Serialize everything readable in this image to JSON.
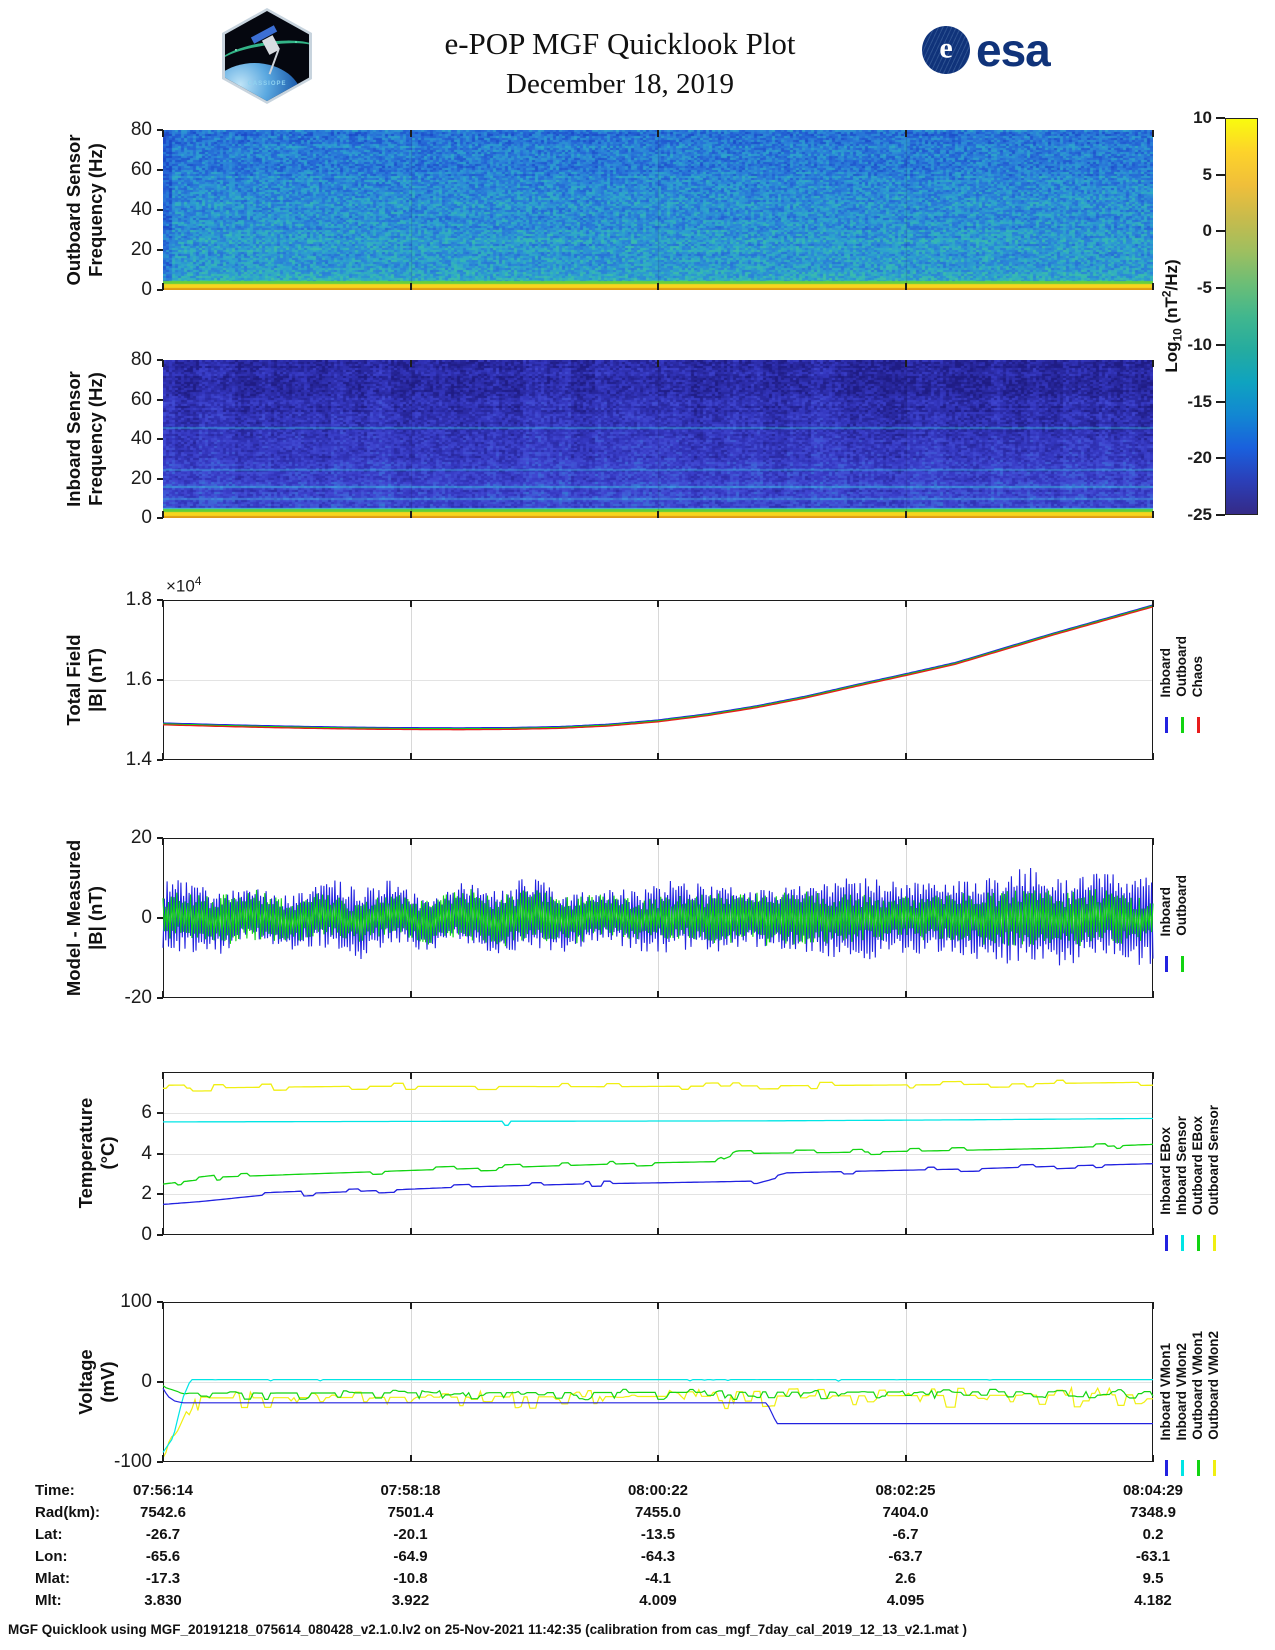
{
  "header": {
    "title": "e-POP MGF Quicklook Plot",
    "date": "December 18, 2019",
    "esa_text": "esa",
    "esa_globe_letter": "e",
    "mission_patch_text": "CASSIOPE"
  },
  "colorbar": {
    "label_parts": {
      "base": "Log",
      "sub": "10",
      "mid": " (nT",
      "sup": "2",
      "end": "/Hz)"
    },
    "tick_labels": [
      "10",
      "5",
      "0",
      "-5",
      "-10",
      "-15",
      "-20",
      "-25"
    ],
    "tick_values": [
      10,
      5,
      0,
      -5,
      -10,
      -15,
      -20,
      -25
    ],
    "gradient_top_to_bottom": [
      "#f9fb0e",
      "#fdd32a",
      "#f0bf3a",
      "#c8bb4c",
      "#9fbf5f",
      "#6cbe76",
      "#41b78e",
      "#25ac9f",
      "#0fa3c0",
      "#1287d2",
      "#1a60dd",
      "#2b3fb8",
      "#352a87"
    ]
  },
  "chart_data": [
    {
      "id": "outboard_spectrogram",
      "type": "heatmap",
      "ylabel_lines": [
        "Outboard Sensor",
        "Frequency (Hz)"
      ],
      "ylim": [
        0,
        80
      ],
      "ytick_values": [
        0,
        20,
        40,
        60,
        80
      ],
      "ytick_labels": [
        "0",
        "20",
        "40",
        "60",
        "80"
      ],
      "x_start": "07:56:14",
      "x_end": "08:04:29",
      "value_scale": "Log10 (nT^2/Hz)",
      "base_level_log": {
        "top": -13.5,
        "bottom": -12.0
      },
      "bottom_band": {
        "freq_hz": 0,
        "description": "bright yellow/orange band at 0 Hz"
      },
      "palette": [
        "#1b49c8",
        "#2566d6",
        "#2b84d8",
        "#2da4cd",
        "#36bab2",
        "#49c69b"
      ],
      "grad": {
        "top": 0.3,
        "bottom": 0.62,
        "noise": 0.5
      },
      "bottom_rows": [
        {
          "h": 3,
          "color": "#66cf3d"
        },
        {
          "h": 4,
          "color": "#f7d51d"
        },
        {
          "h": 2,
          "color": "#de9a15"
        }
      ]
    },
    {
      "id": "inboard_spectrogram",
      "type": "heatmap",
      "ylabel_lines": [
        "Inboard Sensor",
        "Frequency (Hz)"
      ],
      "ylim": [
        0,
        80
      ],
      "ytick_values": [
        0,
        20,
        40,
        60,
        80
      ],
      "ytick_labels": [
        "0",
        "20",
        "40",
        "60",
        "80"
      ],
      "x_start": "07:56:14",
      "x_end": "08:04:29",
      "value_scale": "Log10 (nT^2/Hz)",
      "base_level_log": {
        "top": -18.0,
        "bottom": -14.0
      },
      "interference_lines_hz": [
        {
          "hz": 46,
          "alpha": 0.4
        },
        {
          "hz": 25,
          "alpha": 0.35
        },
        {
          "hz": 16,
          "alpha": 0.5
        },
        {
          "hz": 10,
          "alpha": 0.35
        },
        {
          "hz": 5,
          "alpha": 0.8
        }
      ],
      "interference_color": "#3fd4e8",
      "palette": [
        "#1f1c84",
        "#2a2aa4",
        "#3437c0",
        "#4048d2",
        "#3f63d8",
        "#2f86d2",
        "#31b2c3"
      ],
      "grad": {
        "top": 0.16,
        "bottom": 0.52,
        "noise": 0.38
      },
      "bottom_rows": [
        {
          "h": 3,
          "color": "#5ecf3a"
        },
        {
          "h": 4,
          "color": "#f7d51d"
        },
        {
          "h": 2,
          "color": "#de9a15"
        }
      ]
    },
    {
      "id": "total_field",
      "type": "line",
      "ylabel_lines": [
        "Total Field",
        "|B| (nT)"
      ],
      "ylim": [
        14000,
        18000
      ],
      "ytick_values": [
        14000,
        16000,
        18000
      ],
      "ytick_labels": [
        "1.4",
        "1.6",
        "1.8"
      ],
      "exponent_parts": {
        "base": "×10",
        "sup": "4"
      },
      "series": [
        {
          "name": "Inboard",
          "color": "#2222e0"
        },
        {
          "name": "Outboard",
          "color": "#12d412"
        },
        {
          "name": "Chaos",
          "color": "#e81c1c"
        }
      ],
      "shared_curve_anchors": [
        [
          0,
          14880
        ],
        [
          0.05,
          14845
        ],
        [
          0.1,
          14815
        ],
        [
          0.15,
          14790
        ],
        [
          0.2,
          14772
        ],
        [
          0.25,
          14762
        ],
        [
          0.3,
          14758
        ],
        [
          0.35,
          14765
        ],
        [
          0.4,
          14790
        ],
        [
          0.45,
          14850
        ],
        [
          0.5,
          14955
        ],
        [
          0.55,
          15110
        ],
        [
          0.6,
          15310
        ],
        [
          0.65,
          15555
        ],
        [
          0.7,
          15840
        ],
        [
          0.75,
          16110
        ],
        [
          0.8,
          16390
        ],
        [
          0.85,
          16760
        ],
        [
          0.9,
          17130
        ],
        [
          0.95,
          17480
        ],
        [
          1,
          17830
        ]
      ]
    },
    {
      "id": "model_minus_measured",
      "type": "line",
      "ylabel_lines": [
        "Model - Measured",
        "|B| (nT)"
      ],
      "ylim": [
        -20,
        20
      ],
      "ytick_values": [
        -20,
        0,
        20
      ],
      "ytick_labels": [
        "-20",
        "0",
        "20"
      ],
      "series": [
        {
          "name": "Inboard",
          "color": "#2222e0",
          "amplitude_nT": [
            8,
            13
          ]
        },
        {
          "name": "Outboard",
          "color": "#12d412",
          "amplitude_nT": [
            5.5,
            7
          ]
        }
      ],
      "character": "dense spin-tone oscillation about 0, blue envelope grows toward end of pass"
    },
    {
      "id": "temperature",
      "type": "line",
      "ylabel_lines": [
        "Temperature",
        "(°C)"
      ],
      "ylim": [
        0,
        8
      ],
      "ytick_values": [
        0,
        2,
        4,
        6
      ],
      "ytick_labels": [
        "0",
        "2",
        "4",
        "6"
      ],
      "series": [
        {
          "name": "Inboard EBox",
          "color": "#2222e0",
          "anchors": [
            [
              0,
              1.5
            ],
            [
              0.04,
              1.65
            ],
            [
              0.1,
              1.95
            ],
            [
              0.2,
              2.15
            ],
            [
              0.3,
              2.35
            ],
            [
              0.42,
              2.5
            ],
            [
              0.55,
              2.6
            ],
            [
              0.6,
              2.65
            ],
            [
              0.63,
              3.05
            ],
            [
              0.72,
              3.15
            ],
            [
              0.82,
              3.25
            ],
            [
              0.92,
              3.4
            ],
            [
              1,
              3.5
            ]
          ],
          "noise": {
            "p": 0.28,
            "amp": 0.12
          }
        },
        {
          "name": "Inboard Sensor",
          "color": "#00e5e5",
          "anchors": [
            [
              0,
              5.55
            ],
            [
              0.3,
              5.58
            ],
            [
              0.6,
              5.6
            ],
            [
              0.8,
              5.65
            ],
            [
              1,
              5.72
            ]
          ],
          "noise": {
            "p": 0.06,
            "amp": 0.2
          }
        },
        {
          "name": "Outboard EBox",
          "color": "#12d412",
          "anchors": [
            [
              0,
              2.5
            ],
            [
              0.06,
              2.85
            ],
            [
              0.15,
              3.0
            ],
            [
              0.27,
              3.2
            ],
            [
              0.4,
              3.4
            ],
            [
              0.5,
              3.55
            ],
            [
              0.56,
              3.6
            ],
            [
              0.58,
              4.0
            ],
            [
              0.68,
              4.05
            ],
            [
              0.8,
              4.15
            ],
            [
              0.9,
              4.25
            ],
            [
              1,
              4.45
            ]
          ],
          "noise": {
            "p": 0.3,
            "amp": 0.13
          }
        },
        {
          "name": "Outboard Sensor",
          "color": "#f0ef12",
          "anchors": [
            [
              0,
              7.2
            ],
            [
              0.2,
              7.3
            ],
            [
              0.45,
              7.28
            ],
            [
              0.6,
              7.32
            ],
            [
              0.8,
              7.38
            ],
            [
              1,
              7.5
            ]
          ],
          "noise": {
            "p": 0.3,
            "amp": 0.15
          }
        }
      ]
    },
    {
      "id": "voltage",
      "type": "line",
      "ylabel_lines": [
        "Voltage",
        "(mV)"
      ],
      "ylim": [
        -100,
        100
      ],
      "ytick_values": [
        -100,
        0,
        100
      ],
      "ytick_labels": [
        "-100",
        "0",
        "100"
      ],
      "series": [
        {
          "name": "Inboard VMon1",
          "color": "#2222e0",
          "anchors": [
            [
              0,
              -8
            ],
            [
              0.005,
              -18
            ],
            [
              0.012,
              -24
            ],
            [
              0.02,
              -26
            ],
            [
              0.61,
              -26
            ],
            [
              0.62,
              -52
            ],
            [
              1,
              -52
            ]
          ],
          "noise": {
            "pulse_p": 0.012,
            "pulse_amp": 5,
            "after_x": 0.63
          }
        },
        {
          "name": "Inboard VMon2",
          "color": "#00e5e5",
          "anchors": [
            [
              0,
              -88
            ],
            [
              0.01,
              -70
            ],
            [
              0.02,
              -20
            ],
            [
              0.028,
              3
            ],
            [
              1,
              3
            ]
          ],
          "noise": {
            "p": 0.03,
            "amp": -2
          }
        },
        {
          "name": "Outboard VMon1",
          "color": "#12d412",
          "anchors": [
            [
              0,
              -6
            ],
            [
              0.02,
              -14
            ],
            [
              1,
              -12
            ]
          ],
          "noise": {
            "p": 0.55,
            "down": 9,
            "up": 4
          }
        },
        {
          "name": "Outboard VMon2",
          "color": "#f0ef12",
          "anchors": [
            [
              0,
              -95
            ],
            [
              0.015,
              -60
            ],
            [
              0.03,
              -20
            ],
            [
              1,
              -16
            ]
          ],
          "noise": {
            "p": 0.55,
            "down": 16,
            "up": 9
          }
        }
      ]
    }
  ],
  "info_table": {
    "rows": [
      {
        "label": "Time:",
        "values": [
          "07:56:14",
          "07:58:18",
          "08:00:22",
          "08:02:25",
          "08:04:29"
        ]
      },
      {
        "label": "Rad(km):",
        "values": [
          "7542.6",
          "7501.4",
          "7455.0",
          "7404.0",
          "7348.9"
        ]
      },
      {
        "label": "Lat:",
        "values": [
          "-26.7",
          "-20.1",
          "-13.5",
          "-6.7",
          "0.2"
        ]
      },
      {
        "label": "Lon:",
        "values": [
          "-65.6",
          "-64.9",
          "-64.3",
          "-63.7",
          "-63.1"
        ]
      },
      {
        "label": "Mlat:",
        "values": [
          "-17.3",
          "-10.8",
          "-4.1",
          "2.6",
          "9.5"
        ]
      },
      {
        "label": "Mlt:",
        "values": [
          "3.830",
          "3.922",
          "4.009",
          "4.095",
          "4.182"
        ]
      }
    ]
  },
  "footer": "MGF Quicklook using MGF_20191218_075614_080428_v2.1.0.lv2 on 25-Nov-2021 11:42:35 (calibration from cas_mgf_7day_cal_2019_12_13_v2.1.mat )"
}
